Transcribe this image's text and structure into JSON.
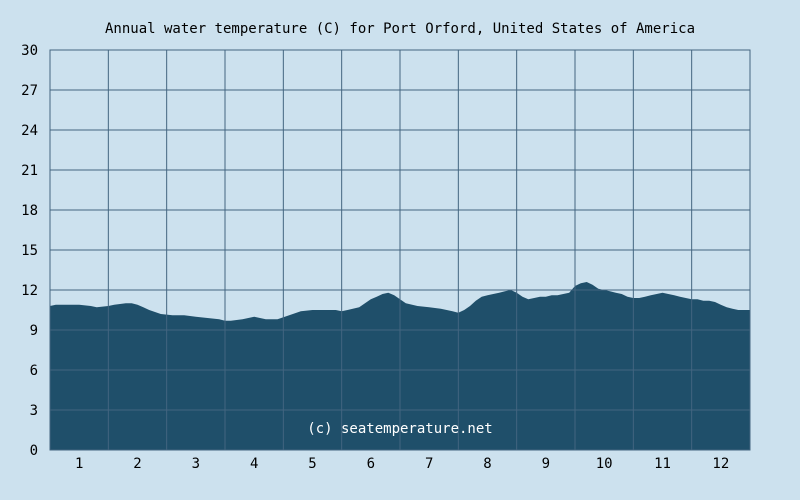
{
  "chart_data": {
    "type": "area",
    "title": "Annual water temperature (C) for Port Orford, United States of America",
    "xlabel": "",
    "ylabel": "",
    "ylim": [
      0,
      30
    ],
    "xlim": [
      0.5,
      12.5
    ],
    "yticks": [
      0,
      3,
      6,
      9,
      12,
      15,
      18,
      21,
      24,
      27,
      30
    ],
    "xticks": [
      1,
      2,
      3,
      4,
      5,
      6,
      7,
      8,
      9,
      10,
      11,
      12
    ],
    "grid": true,
    "watermark": "(c) seatemperature.net",
    "colors": {
      "background": "#cce1ee",
      "plot_background": "#cce1ee",
      "area_fill": "#1f4f6a",
      "grid": "#436580",
      "watermark_text": "#ffffff"
    },
    "series": [
      {
        "x": [
          0.5,
          0.6,
          0.8,
          1.0,
          1.2,
          1.3,
          1.5,
          1.6,
          1.8,
          1.9,
          2.0,
          2.1,
          2.2,
          2.4,
          2.6,
          2.8,
          3.0,
          3.2,
          3.4,
          3.5,
          3.6,
          3.8,
          4.0,
          4.2,
          4.4,
          4.6,
          4.8,
          5.0,
          5.2,
          5.4,
          5.5,
          5.6,
          5.8,
          5.9,
          6.0,
          6.1,
          6.2,
          6.3,
          6.4,
          6.5,
          6.6,
          6.8,
          7.0,
          7.2,
          7.3,
          7.4,
          7.5,
          7.6,
          7.7,
          7.8,
          7.9,
          8.0,
          8.1,
          8.2,
          8.3,
          8.4,
          8.5,
          8.6,
          8.7,
          8.8,
          8.9,
          9.0,
          9.1,
          9.2,
          9.3,
          9.4,
          9.5,
          9.6,
          9.7,
          9.8,
          9.9,
          10.0,
          10.1,
          10.2,
          10.3,
          10.4,
          10.5,
          10.6,
          10.7,
          10.8,
          10.9,
          11.0,
          11.1,
          11.2,
          11.3,
          11.4,
          11.5,
          11.6,
          11.7,
          11.8,
          11.9,
          12.0,
          12.1,
          12.2,
          12.3,
          12.4,
          12.5
        ],
        "values": [
          10.8,
          10.9,
          10.9,
          10.9,
          10.8,
          10.7,
          10.8,
          10.9,
          11.0,
          11.0,
          10.9,
          10.7,
          10.5,
          10.2,
          10.1,
          10.1,
          10.0,
          9.9,
          9.8,
          9.7,
          9.7,
          9.8,
          10.0,
          9.8,
          9.8,
          10.1,
          10.4,
          10.5,
          10.5,
          10.5,
          10.4,
          10.5,
          10.7,
          11.0,
          11.3,
          11.5,
          11.7,
          11.8,
          11.6,
          11.3,
          11.0,
          10.8,
          10.7,
          10.6,
          10.5,
          10.4,
          10.3,
          10.5,
          10.8,
          11.2,
          11.5,
          11.6,
          11.7,
          11.8,
          11.9,
          12.0,
          11.8,
          11.5,
          11.3,
          11.4,
          11.5,
          11.5,
          11.6,
          11.6,
          11.7,
          11.8,
          12.3,
          12.5,
          12.6,
          12.4,
          12.1,
          12.0,
          11.9,
          11.8,
          11.7,
          11.5,
          11.4,
          11.4,
          11.5,
          11.6,
          11.7,
          11.8,
          11.7,
          11.6,
          11.5,
          11.4,
          11.3,
          11.3,
          11.2,
          11.2,
          11.1,
          10.9,
          10.7,
          10.6,
          10.5,
          10.5,
          10.5
        ]
      }
    ]
  }
}
